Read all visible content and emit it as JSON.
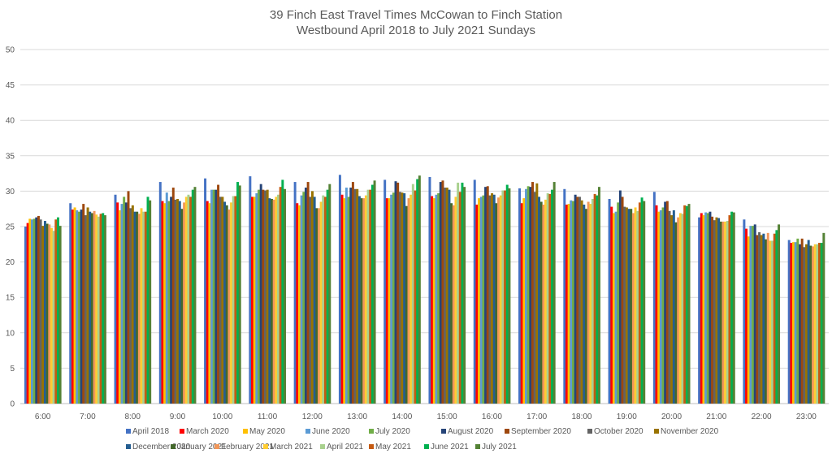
{
  "chart_data": {
    "type": "bar",
    "title": [
      "39 Finch East Travel Times McCowan to Finch Station",
      "Westbound April 2018 to July 2021 Sundays"
    ],
    "xlabel": "",
    "ylabel": "",
    "ylim": [
      0,
      50
    ],
    "yticks": [
      0,
      5,
      10,
      15,
      20,
      25,
      30,
      35,
      40,
      45,
      50
    ],
    "grid": true,
    "legend_position": "bottom",
    "categories": [
      "6:00",
      "7:00",
      "8:00",
      "9:00",
      "10:00",
      "11:00",
      "12:00",
      "13:00",
      "14:00",
      "15:00",
      "16:00",
      "17:00",
      "18:00",
      "19:00",
      "20:00",
      "21:00",
      "22:00",
      "23:00"
    ],
    "series": [
      {
        "name": "April 2018",
        "color": "#4472C4",
        "values": [
          25.0,
          28.3,
          29.5,
          31.3,
          31.8,
          32.1,
          31.3,
          32.3,
          31.6,
          32.0,
          31.6,
          30.4,
          30.3,
          28.9,
          29.9,
          26.3,
          26.0,
          23.1
        ]
      },
      {
        "name": "March 2020",
        "color": "#FF0000",
        "values": [
          25.5,
          27.4,
          28.4,
          28.6,
          28.6,
          29.2,
          28.3,
          29.5,
          29.0,
          29.3,
          28.1,
          28.3,
          28.1,
          27.8,
          28.0,
          26.9,
          24.7,
          22.7
        ]
      },
      {
        "name": "May 2020",
        "color": "#FFC000",
        "values": [
          26.1,
          27.7,
          27.3,
          28.3,
          28.3,
          29.2,
          28.0,
          29.0,
          29.0,
          29.0,
          29.0,
          29.0,
          28.2,
          26.9,
          27.1,
          26.6,
          23.6,
          22.8
        ]
      },
      {
        "name": "June 2020",
        "color": "#5B9BD5",
        "values": [
          26.0,
          27.3,
          28.2,
          29.8,
          30.2,
          29.7,
          29.4,
          30.5,
          29.5,
          29.5,
          29.2,
          30.3,
          28.7,
          27.1,
          27.3,
          27.0,
          25.1,
          22.8
        ]
      },
      {
        "name": "July 2020",
        "color": "#70AD47",
        "values": [
          26.1,
          27.1,
          29.2,
          28.6,
          30.2,
          30.2,
          29.9,
          29.2,
          29.8,
          29.7,
          29.4,
          30.7,
          28.6,
          28.4,
          27.7,
          26.9,
          25.1,
          23.3
        ]
      },
      {
        "name": "August 2020",
        "color": "#264478",
        "values": [
          26.3,
          27.4,
          28.4,
          29.2,
          30.2,
          31.0,
          30.5,
          30.5,
          31.4,
          31.3,
          30.6,
          30.6,
          29.5,
          30.1,
          28.5,
          27.1,
          25.3,
          22.5
        ]
      },
      {
        "name": "September 2020",
        "color": "#9E480E",
        "values": [
          26.5,
          28.2,
          30.0,
          30.5,
          30.9,
          30.2,
          31.3,
          31.3,
          31.2,
          31.5,
          30.7,
          31.3,
          29.2,
          29.2,
          28.6,
          26.4,
          23.8,
          23.3
        ]
      },
      {
        "name": "October 2020",
        "color": "#636363",
        "values": [
          26.0,
          26.6,
          27.6,
          28.8,
          29.2,
          30.1,
          29.2,
          30.3,
          29.9,
          30.5,
          29.4,
          29.9,
          29.2,
          27.8,
          27.2,
          25.9,
          24.2,
          22.1
        ]
      },
      {
        "name": "November 2020",
        "color": "#997300",
        "values": [
          25.1,
          27.7,
          28.0,
          28.9,
          29.2,
          30.2,
          30.0,
          30.3,
          29.8,
          30.5,
          29.7,
          31.1,
          28.7,
          27.7,
          26.6,
          26.3,
          23.8,
          22.5
        ]
      },
      {
        "name": "December 2020",
        "color": "#255E91",
        "values": [
          25.8,
          27.1,
          27.1,
          28.6,
          28.5,
          29.0,
          29.2,
          29.3,
          29.7,
          30.2,
          29.5,
          29.2,
          28.1,
          27.5,
          27.3,
          26.2,
          24.0,
          23.1
        ]
      },
      {
        "name": "January 2021",
        "color": "#43682B",
        "values": [
          25.4,
          26.9,
          27.1,
          27.5,
          28.0,
          28.9,
          27.6,
          29.0,
          27.9,
          28.3,
          28.3,
          28.5,
          27.5,
          27.5,
          25.6,
          25.7,
          23.2,
          22.3
        ]
      },
      {
        "name": "February 2021",
        "color": "#F1975A",
        "values": [
          25.3,
          27.2,
          26.8,
          28.4,
          27.4,
          28.8,
          27.6,
          29.0,
          29.0,
          28.0,
          29.1,
          28.1,
          28.5,
          26.9,
          26.3,
          25.7,
          24.1,
          22.2
        ]
      },
      {
        "name": "March 2021",
        "color": "#FFCD33",
        "values": [
          24.8,
          26.7,
          27.6,
          29.2,
          28.4,
          29.2,
          28.5,
          29.4,
          29.5,
          29.2,
          29.4,
          28.8,
          28.2,
          27.7,
          26.9,
          25.7,
          23.0,
          22.5
        ]
      },
      {
        "name": "April 2021",
        "color": "#A9D18E",
        "values": [
          24.4,
          26.4,
          27.1,
          29.5,
          29.3,
          29.5,
          29.4,
          30.2,
          31.0,
          31.2,
          30.1,
          29.7,
          28.9,
          27.2,
          26.8,
          25.8,
          23.0,
          22.5
        ]
      },
      {
        "name": "May 2021",
        "color": "#C55A11",
        "values": [
          26.0,
          26.8,
          27.1,
          29.2,
          29.3,
          30.6,
          29.2,
          30.2,
          30.1,
          29.9,
          30.1,
          29.6,
          29.6,
          28.4,
          28.0,
          26.6,
          24.0,
          22.7
        ]
      },
      {
        "name": "June 2021",
        "color": "#00B050",
        "values": [
          26.3,
          26.9,
          29.2,
          30.2,
          31.3,
          31.6,
          30.2,
          30.9,
          31.7,
          31.2,
          30.9,
          30.2,
          29.4,
          29.1,
          27.9,
          27.1,
          24.5,
          22.7
        ]
      },
      {
        "name": "July 2021",
        "color": "#548235",
        "values": [
          25.1,
          26.6,
          28.7,
          30.6,
          30.8,
          30.3,
          31.0,
          31.5,
          32.2,
          30.6,
          30.4,
          31.3,
          30.6,
          28.6,
          28.2,
          27.0,
          25.3,
          24.1
        ]
      }
    ]
  }
}
